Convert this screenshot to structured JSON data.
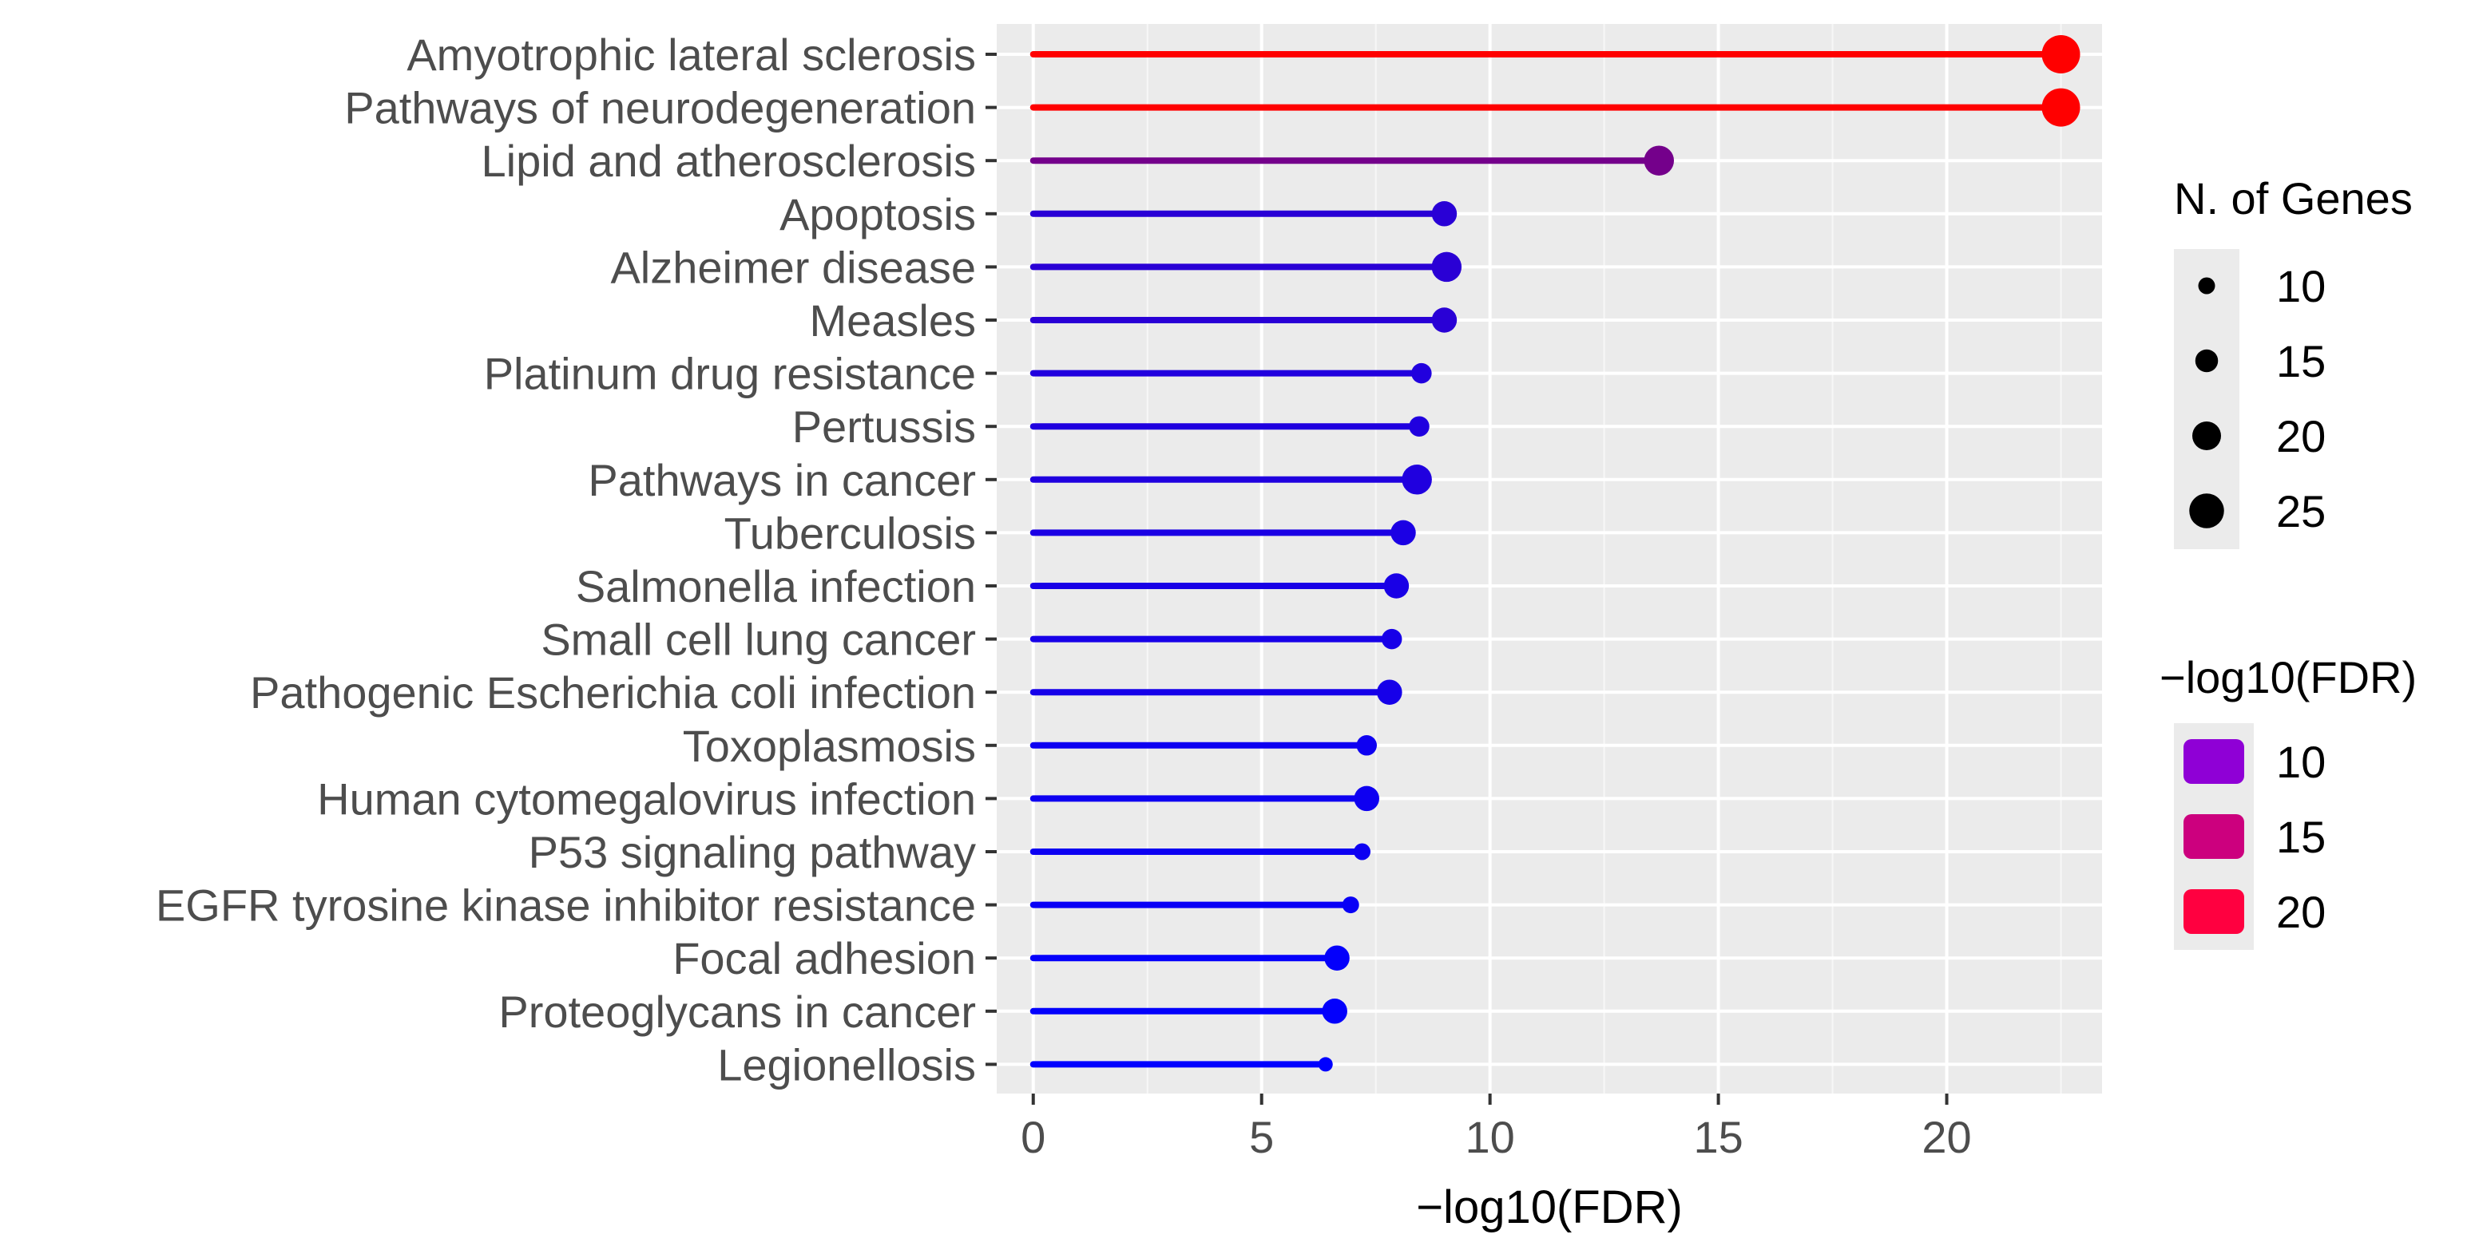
{
  "chart_data": {
    "type": "lollipop",
    "title": "",
    "xlabel": "−log10(FDR)",
    "ylabel": "",
    "xlim": [
      -0.8,
      23.4
    ],
    "xticks": [
      0,
      5,
      10,
      15,
      20
    ],
    "categories": [
      "Amyotrophic lateral sclerosis",
      "Pathways of neurodegeneration",
      "Lipid and atherosclerosis",
      "Apoptosis",
      "Alzheimer disease",
      "Measles",
      "Platinum drug resistance",
      "Pertussis",
      "Pathways in cancer",
      "Tuberculosis",
      "Salmonella infection",
      "Small cell lung cancer",
      "Pathogenic Escherichia coli infection",
      "Toxoplasmosis",
      "Human cytomegalovirus infection",
      "P53 signaling pathway",
      "EGFR tyrosine kinase inhibitor resistance",
      "Focal adhesion",
      "Proteoglycans in cancer",
      "Legionellosis"
    ],
    "values": [
      22.5,
      22.5,
      13.7,
      9.0,
      9.05,
      9.0,
      8.5,
      8.45,
      8.4,
      8.1,
      7.95,
      7.85,
      7.8,
      7.3,
      7.3,
      7.2,
      6.95,
      6.65,
      6.6,
      6.4
    ],
    "gene_counts": [
      28,
      28,
      21,
      17,
      21,
      17,
      13,
      13,
      21,
      17,
      17,
      13,
      17,
      13,
      17,
      10,
      10,
      17,
      17,
      8
    ],
    "grid": true,
    "legends": {
      "size": {
        "title": "N. of Genes",
        "labels": [
          "10",
          "15",
          "20",
          "25"
        ],
        "values": [
          10,
          15,
          20,
          25
        ]
      },
      "color": {
        "title": "−log10(FDR)",
        "labels": [
          "10",
          "15",
          "20"
        ],
        "values": [
          10,
          15,
          20
        ],
        "colors": [
          "#8f00d6",
          "#cc007e",
          "#ff0040"
        ]
      }
    },
    "color_scale": {
      "low_color": "#0000ff",
      "high_color": "#ff0000",
      "low_value": 6.4,
      "high_value": 22.5
    }
  }
}
